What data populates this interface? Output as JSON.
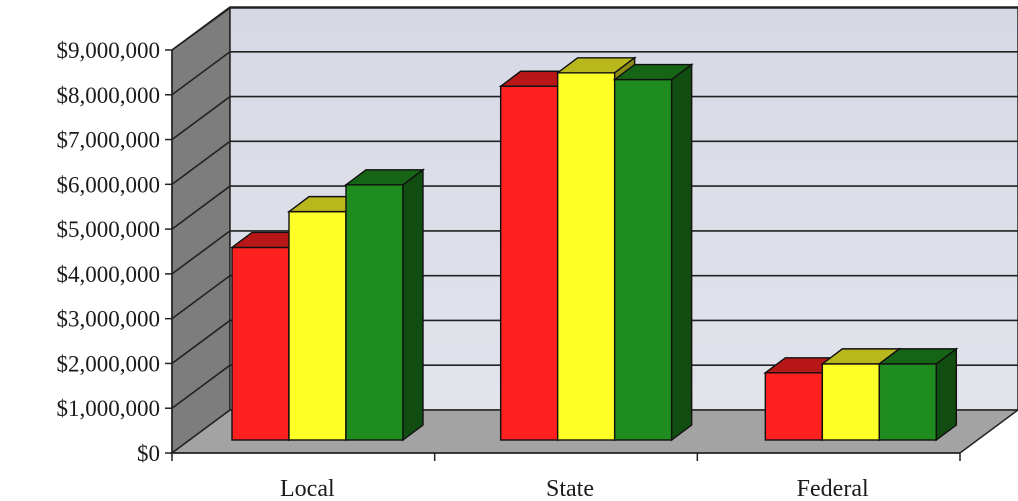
{
  "chart_data": {
    "type": "bar",
    "title": "",
    "xlabel": "",
    "ylabel": "",
    "categories": [
      "Local",
      "State",
      "Federal"
    ],
    "ylim": [
      0,
      9000000
    ],
    "yticks": [
      0,
      1000000,
      2000000,
      3000000,
      4000000,
      5000000,
      6000000,
      7000000,
      8000000,
      9000000
    ],
    "ytick_labels": [
      "$0",
      "$1,000,000",
      "$2,000,000",
      "$3,000,000",
      "$4,000,000",
      "$5,000,000",
      "$6,000,000",
      "$7,000,000",
      "$8,000,000",
      "$9,000,000"
    ],
    "grid": true,
    "legend": "none",
    "series": [
      {
        "color": "#ff2020",
        "values": [
          4300000,
          7900000,
          1500000
        ]
      },
      {
        "color": "#ffff28",
        "values": [
          5100000,
          8200000,
          1700000
        ]
      },
      {
        "color": "#1f8c1f",
        "values": [
          5700000,
          8050000,
          1700000
        ]
      }
    ]
  }
}
